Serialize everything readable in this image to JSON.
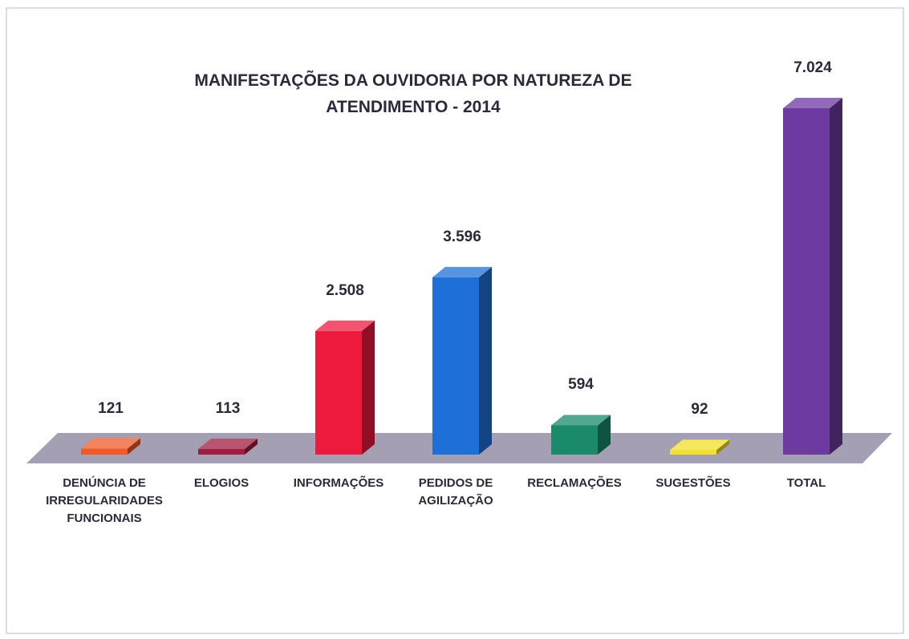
{
  "chart_data": {
    "type": "bar3d",
    "title": "MANIFESTAÇÕES DA OUVIDORIA POR NATUREZA DE ATENDIMENTO - 2014",
    "categories": [
      "DENÚNCIA DE IRREGULARIDADES FUNCIONAIS",
      "ELOGIOS",
      "INFORMAÇÕES",
      "PEDIDOS DE AGILIZAÇÃO",
      "RECLAMAÇÕES",
      "SUGESTÕES",
      "TOTAL"
    ],
    "values": [
      121,
      113,
      2508,
      3596,
      594,
      92,
      7024
    ],
    "value_labels": [
      "121",
      "113",
      "2.508",
      "3.596",
      "594",
      "92",
      "7.024"
    ],
    "colors": [
      "#f05a28",
      "#a01c40",
      "#ee1a3e",
      "#1f6fd8",
      "#1a8a6a",
      "#f2e02a",
      "#6c3aa0"
    ]
  }
}
